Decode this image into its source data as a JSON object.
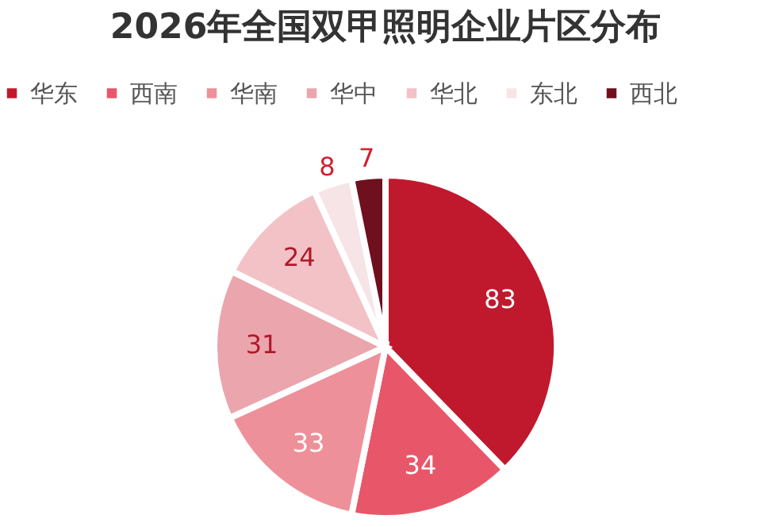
{
  "chart_data": {
    "type": "pie",
    "title": "2026年全国双甲照明企业片区分布",
    "categories": [
      "华东",
      "西南",
      "华南",
      "华中",
      "华北",
      "东北",
      "西北"
    ],
    "values": [
      83,
      34,
      33,
      31,
      24,
      8,
      7
    ],
    "colors": [
      "#c0192e",
      "#e8566a",
      "#ee9099",
      "#eba5ac",
      "#f2c2c7",
      "#f7e4e6",
      "#6e101d"
    ],
    "data_labels": true,
    "legend": "top"
  }
}
